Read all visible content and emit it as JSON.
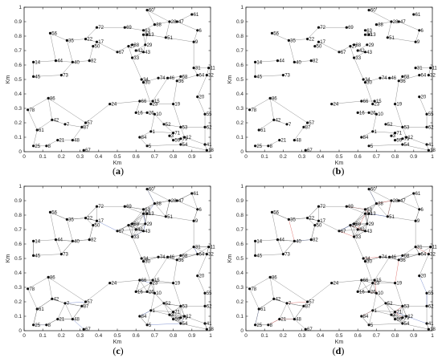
{
  "figure_panels": [
    "(a)",
    "(b)",
    "(c)",
    "(d)"
  ],
  "chart_data": {
    "type": "scatter",
    "xlabel": "Km",
    "ylabel": "Km",
    "xlim": [
      0,
      1
    ],
    "ylim": [
      0,
      1
    ],
    "xticks": [
      "0",
      "0.1",
      "0.2",
      "0.3",
      "0.4",
      "0.5",
      "0.6",
      "0.7",
      "0.8",
      "0.9",
      "1"
    ],
    "yticks": [
      "0",
      "0.1",
      "0.2",
      "0.3",
      "0.4",
      "0.5",
      "0.6",
      "0.7",
      "0.8",
      "0.9",
      "1"
    ],
    "grid": false,
    "colors": {
      "edge": "#6e6e6e",
      "node": "#111111",
      "edge_blue": "#5b73c4",
      "edge_red": "#d9534f"
    },
    "nodes": [
      {
        "id": "60",
        "x": 0.66,
        "y": 0.98
      },
      {
        "id": "61",
        "x": 0.9,
        "y": 0.95
      },
      {
        "id": "47",
        "x": 0.82,
        "y": 0.9
      },
      {
        "id": "28",
        "x": 0.78,
        "y": 0.9
      },
      {
        "id": "88",
        "x": 0.7,
        "y": 0.88
      },
      {
        "id": "6",
        "x": 0.93,
        "y": 0.84
      },
      {
        "id": "72",
        "x": 0.39,
        "y": 0.86
      },
      {
        "id": "69",
        "x": 0.54,
        "y": 0.86
      },
      {
        "id": "63",
        "x": 0.64,
        "y": 0.84
      },
      {
        "id": "13",
        "x": 0.66,
        "y": 0.81
      },
      {
        "id": "80",
        "x": 0.64,
        "y": 0.81
      },
      {
        "id": "51",
        "x": 0.76,
        "y": 0.79
      },
      {
        "id": "9",
        "x": 0.91,
        "y": 0.76
      },
      {
        "id": "56",
        "x": 0.14,
        "y": 0.82
      },
      {
        "id": "35",
        "x": 0.23,
        "y": 0.77
      },
      {
        "id": "17",
        "x": 0.39,
        "y": 0.76
      },
      {
        "id": "22",
        "x": 0.33,
        "y": 0.78
      },
      {
        "id": "50",
        "x": 0.37,
        "y": 0.73
      },
      {
        "id": "27",
        "x": 0.56,
        "y": 0.73
      },
      {
        "id": "29",
        "x": 0.65,
        "y": 0.74
      },
      {
        "id": "38",
        "x": 0.58,
        "y": 0.74
      },
      {
        "id": "67",
        "x": 0.5,
        "y": 0.69
      },
      {
        "id": "42",
        "x": 0.6,
        "y": 0.7
      },
      {
        "id": "43",
        "x": 0.64,
        "y": 0.69
      },
      {
        "id": "33",
        "x": 0.58,
        "y": 0.65
      },
      {
        "id": "44",
        "x": 0.17,
        "y": 0.63
      },
      {
        "id": "40",
        "x": 0.26,
        "y": 0.62
      },
      {
        "id": "82",
        "x": 0.35,
        "y": 0.63
      },
      {
        "id": "14",
        "x": 0.05,
        "y": 0.62
      },
      {
        "id": "45",
        "x": 0.05,
        "y": 0.52
      },
      {
        "id": "73",
        "x": 0.2,
        "y": 0.53
      },
      {
        "id": "31",
        "x": 0.91,
        "y": 0.58
      },
      {
        "id": "11",
        "x": 0.99,
        "y": 0.58
      },
      {
        "id": "64",
        "x": 0.93,
        "y": 0.53
      },
      {
        "id": "32",
        "x": 0.98,
        "y": 0.53
      },
      {
        "id": "68",
        "x": 0.84,
        "y": 0.52
      },
      {
        "id": "36",
        "x": 0.82,
        "y": 0.49
      },
      {
        "id": "34",
        "x": 0.63,
        "y": 0.5
      },
      {
        "id": "74",
        "x": 0.72,
        "y": 0.51
      },
      {
        "id": "46",
        "x": 0.77,
        "y": 0.51
      },
      {
        "id": "30",
        "x": 0.64,
        "y": 0.48
      },
      {
        "id": "20",
        "x": 0.93,
        "y": 0.38
      },
      {
        "id": "86",
        "x": 0.13,
        "y": 0.37
      },
      {
        "id": "24",
        "x": 0.46,
        "y": 0.33
      },
      {
        "id": "66",
        "x": 0.62,
        "y": 0.35
      },
      {
        "id": "15",
        "x": 0.69,
        "y": 0.35
      },
      {
        "id": "23",
        "x": 0.68,
        "y": 0.33
      },
      {
        "id": "19",
        "x": 0.8,
        "y": 0.33
      },
      {
        "id": "78",
        "x": 0.02,
        "y": 0.29
      },
      {
        "id": "26",
        "x": 0.66,
        "y": 0.27
      },
      {
        "id": "16",
        "x": 0.6,
        "y": 0.27
      },
      {
        "id": "10",
        "x": 0.7,
        "y": 0.26
      },
      {
        "id": "55",
        "x": 0.97,
        "y": 0.26
      },
      {
        "id": "42b",
        "x": 0.15,
        "y": 0.22
      },
      {
        "id": "7",
        "x": 0.22,
        "y": 0.19
      },
      {
        "id": "57",
        "x": 0.33,
        "y": 0.2
      },
      {
        "id": "87",
        "x": 0.31,
        "y": 0.17
      },
      {
        "id": "52",
        "x": 0.75,
        "y": 0.19
      },
      {
        "id": "53",
        "x": 0.84,
        "y": 0.17
      },
      {
        "id": "61b",
        "x": 0.07,
        "y": 0.15
      },
      {
        "id": "62",
        "x": 0.97,
        "y": 0.17
      },
      {
        "id": "1",
        "x": 0.68,
        "y": 0.14
      },
      {
        "id": "71",
        "x": 0.8,
        "y": 0.13
      },
      {
        "id": "3",
        "x": 0.78,
        "y": 0.11
      },
      {
        "id": "12",
        "x": 0.86,
        "y": 0.1
      },
      {
        "id": "84",
        "x": 0.62,
        "y": 0.1
      },
      {
        "id": "21",
        "x": 0.18,
        "y": 0.08
      },
      {
        "id": "48",
        "x": 0.26,
        "y": 0.08
      },
      {
        "id": "59",
        "x": 0.8,
        "y": 0.08
      },
      {
        "id": "79",
        "x": 0.84,
        "y": 0.09
      },
      {
        "id": "41",
        "x": 0.97,
        "y": 0.05
      },
      {
        "id": "25",
        "x": 0.05,
        "y": 0.04
      },
      {
        "id": "8",
        "x": 0.12,
        "y": 0.04
      },
      {
        "id": "67b",
        "x": 0.32,
        "y": 0.01
      },
      {
        "id": "5",
        "x": 0.66,
        "y": 0.04
      },
      {
        "id": "54",
        "x": 0.84,
        "y": 0.05
      },
      {
        "id": "18",
        "x": 0.98,
        "y": 0.01
      }
    ],
    "edges": [
      [
        "60",
        "88"
      ],
      [
        "60",
        "28"
      ],
      [
        "28",
        "47"
      ],
      [
        "47",
        "61"
      ],
      [
        "47",
        "6"
      ],
      [
        "6",
        "9"
      ],
      [
        "88",
        "63"
      ],
      [
        "88",
        "28"
      ],
      [
        "63",
        "13"
      ],
      [
        "13",
        "51"
      ],
      [
        "51",
        "9"
      ],
      [
        "51",
        "28"
      ],
      [
        "80",
        "29"
      ],
      [
        "29",
        "42"
      ],
      [
        "42",
        "43"
      ],
      [
        "38",
        "27"
      ],
      [
        "27",
        "67"
      ],
      [
        "67",
        "17"
      ],
      [
        "17",
        "22"
      ],
      [
        "22",
        "35"
      ],
      [
        "35",
        "56"
      ],
      [
        "56",
        "44"
      ],
      [
        "35",
        "40"
      ],
      [
        "40",
        "82"
      ],
      [
        "82",
        "50"
      ],
      [
        "50",
        "17"
      ],
      [
        "44",
        "14"
      ],
      [
        "44",
        "40"
      ],
      [
        "14",
        "45"
      ],
      [
        "45",
        "73"
      ],
      [
        "73",
        "40"
      ],
      [
        "72",
        "22"
      ],
      [
        "72",
        "69"
      ],
      [
        "69",
        "63"
      ],
      [
        "33",
        "43"
      ],
      [
        "33",
        "34"
      ],
      [
        "34",
        "30"
      ],
      [
        "30",
        "74"
      ],
      [
        "74",
        "46"
      ],
      [
        "46",
        "68"
      ],
      [
        "68",
        "36"
      ],
      [
        "36",
        "64"
      ],
      [
        "64",
        "31"
      ],
      [
        "31",
        "11"
      ],
      [
        "11",
        "32"
      ],
      [
        "32",
        "20"
      ],
      [
        "20",
        "55"
      ],
      [
        "55",
        "62"
      ],
      [
        "62",
        "41"
      ],
      [
        "41",
        "18"
      ],
      [
        "18",
        "54"
      ],
      [
        "54",
        "12"
      ],
      [
        "12",
        "53"
      ],
      [
        "53",
        "52"
      ],
      [
        "52",
        "10"
      ],
      [
        "10",
        "26"
      ],
      [
        "26",
        "16"
      ],
      [
        "16",
        "66"
      ],
      [
        "66",
        "15"
      ],
      [
        "15",
        "23"
      ],
      [
        "23",
        "19"
      ],
      [
        "19",
        "53"
      ],
      [
        "66",
        "24"
      ],
      [
        "24",
        "57"
      ],
      [
        "57",
        "87"
      ],
      [
        "87",
        "48"
      ],
      [
        "48",
        "21"
      ],
      [
        "21",
        "8"
      ],
      [
        "8",
        "25"
      ],
      [
        "25",
        "61b"
      ],
      [
        "61b",
        "42b"
      ],
      [
        "42b",
        "7"
      ],
      [
        "7",
        "87"
      ],
      [
        "42b",
        "86"
      ],
      [
        "86",
        "78"
      ],
      [
        "78",
        "61b"
      ],
      [
        "86",
        "57"
      ],
      [
        "1",
        "84"
      ],
      [
        "84",
        "5"
      ],
      [
        "1",
        "71"
      ],
      [
        "71",
        "3"
      ],
      [
        "3",
        "59"
      ],
      [
        "59",
        "79"
      ],
      [
        "79",
        "12"
      ],
      [
        "71",
        "52"
      ],
      [
        "5",
        "54"
      ],
      [
        "1",
        "10"
      ],
      [
        "9",
        "31"
      ],
      [
        "36",
        "19"
      ],
      [
        "30",
        "23"
      ],
      [
        "15",
        "46"
      ],
      [
        "53",
        "62"
      ],
      [
        "12",
        "41"
      ],
      [
        "13",
        "43"
      ],
      [
        "27",
        "33"
      ]
    ]
  }
}
